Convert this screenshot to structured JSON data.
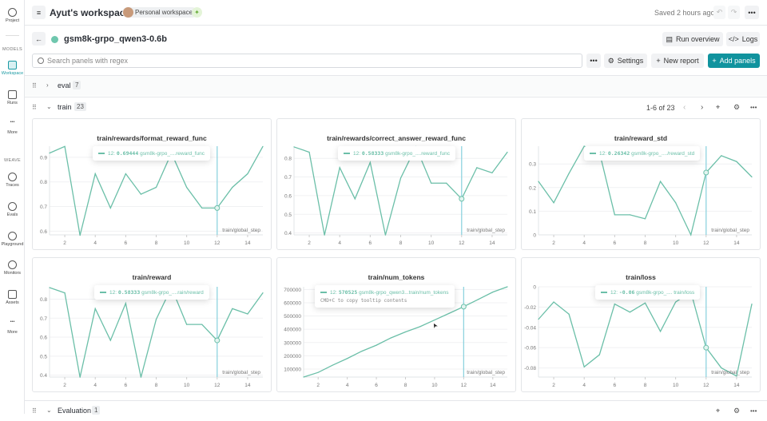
{
  "sidebar": {
    "project": "Project",
    "models_header": "MODELS",
    "workspace": "Workspace",
    "runs": "Runs",
    "more1": "More",
    "weave_header": "WEAVE",
    "traces": "Traces",
    "evals": "Evals",
    "playground": "Playground",
    "monitors": "Monitors",
    "assets": "Assets",
    "more2": "More"
  },
  "topbar": {
    "title": "Ayut's workspace",
    "chip": "Personal workspace",
    "saved": "Saved 2 hours ago"
  },
  "header": {
    "run_name": "gsm8k-grpo_qwen3-0.6b",
    "run_overview": "Run overview",
    "logs": "Logs",
    "run_color": "#6fc7ae"
  },
  "toolbar": {
    "search_placeholder": "Search panels with regex",
    "settings": "Settings",
    "new_report": "New report",
    "add_panels": "Add panels"
  },
  "sections": [
    {
      "label": "eval",
      "count": "7"
    },
    {
      "label": "train",
      "count": "23",
      "pager": "1-6 of 23"
    },
    {
      "label": "Evaluation",
      "count": "1"
    }
  ],
  "accent": "#10939e",
  "series_color": "#6bbfa8",
  "chart_data": [
    {
      "type": "line",
      "title": "train/rewards/format_reward_func",
      "xlabel": "train/global_step",
      "x": [
        1,
        2,
        3,
        4,
        5,
        6,
        7,
        8,
        9,
        10,
        11,
        12,
        13,
        14,
        15
      ],
      "values": [
        0.917,
        0.944,
        0.583,
        0.833,
        0.694,
        0.833,
        0.75,
        0.778,
        0.917,
        0.778,
        0.694,
        0.694,
        0.778,
        0.833,
        0.944
      ],
      "ylim": [
        0.585,
        0.945
      ],
      "yticks": [
        0.6,
        0.7,
        0.8,
        0.9
      ],
      "xticks": [
        2,
        4,
        6,
        8,
        10,
        12,
        14
      ],
      "grid": true,
      "tooltip": {
        "step": "12:",
        "value": "0.69444",
        "name": "gsm8k-grpo_....reward_func"
      }
    },
    {
      "type": "line",
      "title": "train/rewards/correct_answer_reward_func",
      "xlabel": "train/global_step",
      "x": [
        1,
        2,
        3,
        4,
        5,
        6,
        7,
        8,
        9,
        10,
        11,
        12,
        13,
        14,
        15
      ],
      "values": [
        0.861,
        0.833,
        0.389,
        0.75,
        0.583,
        0.778,
        0.389,
        0.694,
        0.861,
        0.667,
        0.667,
        0.583,
        0.75,
        0.722,
        0.833
      ],
      "ylim": [
        0.39,
        0.865
      ],
      "yticks": [
        0.4,
        0.5,
        0.6,
        0.7,
        0.8
      ],
      "xticks": [
        2,
        4,
        6,
        8,
        10,
        12,
        14
      ],
      "grid": true,
      "tooltip": {
        "step": "12:",
        "value": "0.58333",
        "name": "gsm8k-grpo_....reward_func"
      }
    },
    {
      "type": "line",
      "title": "train/reward_std",
      "xlabel": "train/global_step",
      "x": [
        1,
        2,
        3,
        4,
        5,
        6,
        7,
        8,
        9,
        10,
        11,
        12,
        13,
        14,
        15
      ],
      "values": [
        0.226,
        0.136,
        0.26,
        0.375,
        0.35,
        0.085,
        0.085,
        0.068,
        0.226,
        0.136,
        0,
        0.26342,
        0.335,
        0.31,
        0.245
      ],
      "ylim": [
        0,
        0.375
      ],
      "yticks": [
        0,
        0.1,
        0.2,
        0.3
      ],
      "xticks": [
        2,
        4,
        6,
        8,
        10,
        12,
        14
      ],
      "grid": true,
      "tooltip": {
        "step": "12:",
        "value": "0.26342",
        "name": "gsm8k-grpo_..../reward_std"
      }
    },
    {
      "type": "line",
      "title": "train/reward",
      "xlabel": "train/global_step",
      "x": [
        1,
        2,
        3,
        4,
        5,
        6,
        7,
        8,
        9,
        10,
        11,
        12,
        13,
        14,
        15
      ],
      "values": [
        0.861,
        0.833,
        0.389,
        0.75,
        0.583,
        0.778,
        0.389,
        0.694,
        0.861,
        0.667,
        0.667,
        0.583,
        0.75,
        0.722,
        0.833
      ],
      "ylim": [
        0.39,
        0.865
      ],
      "yticks": [
        0.4,
        0.5,
        0.6,
        0.7,
        0.8
      ],
      "xticks": [
        2,
        4,
        6,
        8,
        10,
        12,
        14
      ],
      "grid": true,
      "tooltip": {
        "step": "12:",
        "value": "0.58333",
        "name": "gsm8k-grpo_....rain/reward"
      }
    },
    {
      "type": "line",
      "title": "train/num_tokens",
      "xlabel": "train/global_step",
      "x": [
        1,
        2,
        3,
        4,
        5,
        6,
        7,
        8,
        9,
        10,
        11,
        12,
        13,
        14,
        15
      ],
      "values": [
        40000,
        75000,
        130000,
        180000,
        235000,
        280000,
        335000,
        380000,
        420000,
        470000,
        520000,
        570525,
        625000,
        680000,
        720000
      ],
      "ylim": [
        40000,
        720000
      ],
      "yticks": [
        100000,
        200000,
        300000,
        400000,
        500000,
        600000,
        700000
      ],
      "xticks": [
        2,
        4,
        6,
        8,
        10,
        12,
        14
      ],
      "grid": true,
      "tooltip": {
        "step": "12:",
        "value": "570525",
        "name": "gsm8k-grpo_qwen3...train/num_tokens",
        "hint": "CMD+C to copy tooltip contents"
      }
    },
    {
      "type": "line",
      "title": "train/loss",
      "xlabel": "train/global_step",
      "x": [
        1,
        2,
        3,
        4,
        5,
        6,
        7,
        8,
        9,
        10,
        11,
        12,
        13,
        14,
        15
      ],
      "values": [
        -0.032,
        -0.015,
        -0.027,
        -0.079,
        -0.067,
        -0.017,
        -0.025,
        -0.016,
        -0.044,
        -0.015,
        -0.005,
        -0.06,
        -0.08,
        -0.088,
        -0.017
      ],
      "ylim": [
        -0.089,
        0
      ],
      "yticks": [
        -0.08,
        -0.06,
        -0.04,
        -0.02,
        0
      ],
      "xticks": [
        2,
        4,
        6,
        8,
        10,
        12,
        14
      ],
      "grid": true,
      "tooltip": {
        "step": "12:",
        "value": "-0.06",
        "name": "gsm8k-grpo_.... train/loss"
      }
    }
  ]
}
